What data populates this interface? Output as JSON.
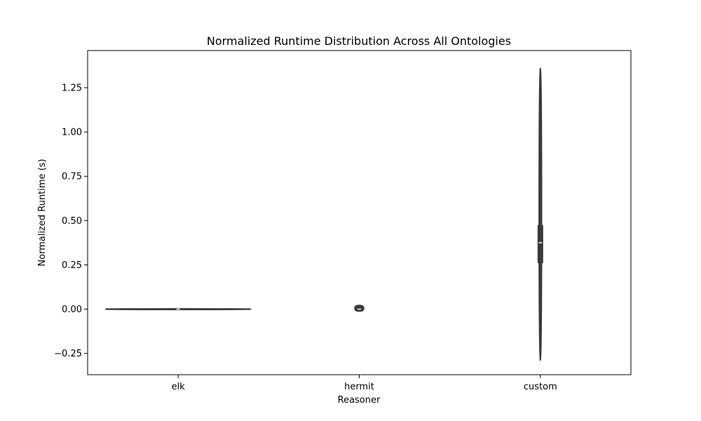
{
  "chart_data": {
    "type": "violin",
    "title": "Normalized Runtime Distribution Across All Ontologies",
    "xlabel": "Reasoner",
    "ylabel": "Normalized Runtime (s)",
    "categories": [
      "elk",
      "hermit",
      "custom"
    ],
    "ylim": [
      -0.37,
      1.46
    ],
    "yticks": [
      -0.25,
      0.0,
      0.25,
      0.5,
      0.75,
      1.0,
      1.25
    ],
    "ytick_labels": [
      "−0.25",
      "0.00",
      "0.25",
      "0.50",
      "0.75",
      "1.00",
      "1.25"
    ],
    "grid": false,
    "legend": "none",
    "colors": {
      "body": "#3a3a3a",
      "box": "#3a3a3a",
      "median": "#ffffff",
      "axis": "#000000"
    },
    "violins": [
      {
        "category": "elk",
        "min": -0.002,
        "q1": -0.001,
        "median": 0.0,
        "q3": 0.001,
        "max": 0.002,
        "relative_width": 0.8
      },
      {
        "category": "hermit",
        "min": -0.012,
        "q1": -0.005,
        "median": 0.0,
        "q3": 0.005,
        "max": 0.022,
        "relative_width": 0.05
      },
      {
        "category": "custom",
        "min": -0.29,
        "q1": 0.26,
        "median": 0.375,
        "q3": 0.475,
        "max": 1.36,
        "whisker_low": 0.07,
        "whisker_high": 1.36,
        "relative_width": 0.015
      }
    ]
  }
}
